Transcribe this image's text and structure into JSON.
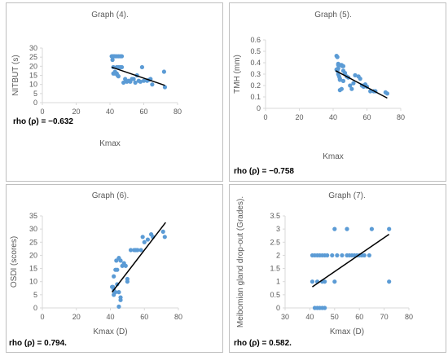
{
  "colors": {
    "point": "#5b9bd5",
    "trend": "#000000",
    "axis": "#d9d9d9",
    "text": "#595959",
    "border": "#bfbfbf"
  },
  "chart_data": [
    {
      "type": "scatter",
      "title": "Graph (4).",
      "xlabel": "Kmax",
      "ylabel": "NITBUT (s)",
      "xlim": [
        0,
        80
      ],
      "ylim": [
        0,
        30
      ],
      "xticks": [
        "0",
        "20",
        "40",
        "60",
        "80"
      ],
      "yticks": [
        "0",
        "5",
        "10",
        "15",
        "20",
        "25",
        "30"
      ],
      "x": [
        41,
        41.5,
        42,
        42.5,
        43,
        44,
        45,
        46,
        47,
        41.5,
        42,
        43,
        44,
        44.5,
        45,
        46,
        47,
        48,
        49,
        50,
        51,
        52,
        53,
        54,
        55,
        56,
        57,
        58,
        59,
        60,
        62,
        63,
        64,
        65,
        72,
        72.5,
        42,
        43,
        44,
        45
      ],
      "y": [
        25.5,
        25.5,
        25.5,
        25.5,
        25.5,
        25.5,
        25.5,
        25.5,
        25.5,
        23.5,
        19.5,
        17,
        16,
        15,
        14.5,
        19.5,
        19.5,
        11,
        13,
        11.5,
        12,
        11.5,
        13,
        13,
        11,
        15,
        12,
        11.5,
        19.5,
        12,
        12,
        12.5,
        13,
        10,
        17,
        8.5,
        16,
        16,
        19.5,
        19.5
      ],
      "trend": {
        "x": [
          41,
          72.5
        ],
        "y": [
          19.5,
          9.5
        ]
      },
      "rho": {
        "label": "rho (ρ)",
        "value": " = −0.632"
      }
    },
    {
      "type": "scatter",
      "title": "Graph (5).",
      "xlabel": "Kmax",
      "ylabel": "TMH (mm)",
      "xlim": [
        0,
        80
      ],
      "ylim": [
        0,
        0.6
      ],
      "xticks": [
        "0",
        "20",
        "40",
        "60",
        "80"
      ],
      "yticks": [
        "0",
        "0.1",
        "0.2",
        "0.3",
        "0.4",
        "0.5",
        "0.6"
      ],
      "x": [
        42,
        42.5,
        43,
        43,
        42,
        42.5,
        43,
        43.5,
        44,
        44,
        45,
        45.5,
        46,
        46,
        47,
        48,
        49,
        50,
        51,
        52,
        53,
        55,
        56,
        57,
        58,
        59,
        60,
        62,
        64,
        65,
        71,
        72,
        44,
        45,
        46,
        43,
        44
      ],
      "y": [
        0.46,
        0.45,
        0.39,
        0.38,
        0.34,
        0.33,
        0.3,
        0.28,
        0.26,
        0.25,
        0.38,
        0.37,
        0.37,
        0.33,
        0.31,
        0.28,
        0.27,
        0.2,
        0.17,
        0.22,
        0.29,
        0.28,
        0.26,
        0.2,
        0.19,
        0.21,
        0.19,
        0.15,
        0.15,
        0.15,
        0.14,
        0.13,
        0.16,
        0.17,
        0.24,
        0.35,
        0.38
      ],
      "trend": {
        "x": [
          41.5,
          72
        ],
        "y": [
          0.33,
          0.09
        ]
      },
      "rho": {
        "label": "rho (ρ)",
        "value": " = −0.758"
      }
    },
    {
      "type": "scatter",
      "title": "Graph (6).",
      "xlabel": "Kmax (D)",
      "ylabel": "OSDI (scores)",
      "xlim": [
        0,
        80
      ],
      "ylim": [
        0,
        35
      ],
      "xticks": [
        "0",
        "20",
        "40",
        "60",
        "80"
      ],
      "yticks": [
        "0",
        "5",
        "10",
        "15",
        "20",
        "25",
        "30",
        "35"
      ],
      "x": [
        41,
        41.5,
        42,
        42,
        42.5,
        43,
        43.5,
        44,
        44,
        45,
        45,
        46,
        46,
        47,
        48,
        49,
        50,
        50,
        52,
        54,
        55,
        56,
        58,
        59,
        60,
        62,
        64,
        65,
        71,
        72,
        42,
        43,
        45,
        46
      ],
      "y": [
        8,
        8,
        7,
        5,
        6,
        14.5,
        18,
        14.5,
        9,
        19,
        6,
        4,
        18,
        16,
        17,
        16,
        10,
        11,
        22,
        22,
        22,
        22,
        22,
        27,
        25,
        26,
        28,
        27,
        29,
        27,
        12,
        6,
        0.5,
        3
      ],
      "trend": {
        "x": [
          41,
          72.5
        ],
        "y": [
          6,
          32.5
        ]
      },
      "rho": {
        "label": "rho (ρ)",
        "value": " = 0.794."
      }
    },
    {
      "type": "scatter",
      "title": "Graph (7).",
      "xlabel": "Kmax (D)",
      "ylabel": "Meibomian gland drop-out (Grades).",
      "xlim": [
        30,
        80
      ],
      "ylim": [
        0,
        3.5
      ],
      "xticks": [
        "30",
        "40",
        "50",
        "60",
        "70",
        "80"
      ],
      "yticks": [
        "0",
        "0.5",
        "1",
        "1.5",
        "2",
        "2.5",
        "3",
        "3.5"
      ],
      "x": [
        41,
        42,
        43,
        44,
        45,
        46,
        47,
        49,
        51,
        53,
        55,
        56,
        57,
        58,
        59,
        60,
        61,
        62,
        64,
        41,
        43,
        45,
        46,
        50,
        72,
        42,
        43,
        44,
        45,
        46,
        50,
        55,
        65,
        72
      ],
      "y": [
        2,
        2,
        2,
        2,
        2,
        2,
        2,
        2,
        2,
        2,
        2,
        2,
        2,
        2,
        2,
        2,
        2,
        2,
        2,
        1,
        1,
        1,
        1,
        1,
        1,
        0,
        0,
        0,
        0,
        0,
        3,
        3,
        3,
        3
      ],
      "trend": {
        "x": [
          41,
          72
        ],
        "y": [
          0.8,
          2.8
        ]
      },
      "rho": {
        "label": "rho (ρ)",
        "value": " = 0.582."
      }
    }
  ]
}
